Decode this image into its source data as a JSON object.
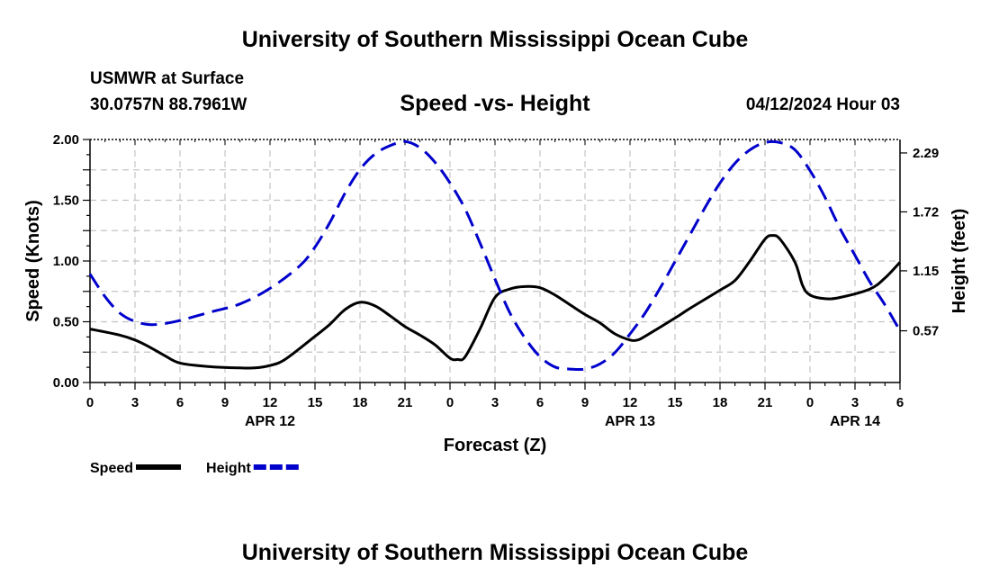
{
  "header": {
    "title": "University of Southern Mississippi Ocean Cube",
    "station": "USMWR at Surface",
    "coords": "30.0757N  88.7961W",
    "datetime": "04/12/2024 Hour 03"
  },
  "footer": {
    "title": "University of Southern Mississippi Ocean Cube"
  },
  "chart_data": {
    "type": "line",
    "title": "Speed -vs- Height",
    "xlabel": "Forecast (Z)",
    "ylabel": "Speed (Knots)",
    "y2label": "Height (feet)",
    "x_unit": "hours since APR 12 00Z",
    "x_range": [
      0,
      54
    ],
    "ylim": [
      0,
      2.0
    ],
    "y2lim": [
      0.07,
      2.42
    ],
    "grid": true,
    "legend_position": "bottom-left",
    "x_ticks": [
      {
        "x": 0,
        "label": "0"
      },
      {
        "x": 3,
        "label": "3"
      },
      {
        "x": 6,
        "label": "6"
      },
      {
        "x": 9,
        "label": "9"
      },
      {
        "x": 12,
        "label": "12"
      },
      {
        "x": 15,
        "label": "15"
      },
      {
        "x": 18,
        "label": "18"
      },
      {
        "x": 21,
        "label": "21"
      },
      {
        "x": 24,
        "label": "0"
      },
      {
        "x": 27,
        "label": "3"
      },
      {
        "x": 30,
        "label": "6"
      },
      {
        "x": 33,
        "label": "9"
      },
      {
        "x": 36,
        "label": "12"
      },
      {
        "x": 39,
        "label": "15"
      },
      {
        "x": 42,
        "label": "18"
      },
      {
        "x": 45,
        "label": "21"
      },
      {
        "x": 48,
        "label": "0"
      },
      {
        "x": 51,
        "label": "3"
      },
      {
        "x": 54,
        "label": "6"
      }
    ],
    "date_labels": [
      {
        "x": 12,
        "label": "APR 12"
      },
      {
        "x": 36,
        "label": "APR 13"
      },
      {
        "x": 51,
        "label": "APR 14"
      }
    ],
    "y_ticks": [
      {
        "y": 0,
        "label": "0.00"
      },
      {
        "y": 0.5,
        "label": "0.50"
      },
      {
        "y": 1.0,
        "label": "1.00"
      },
      {
        "y": 1.5,
        "label": "1.50"
      },
      {
        "y": 2.0,
        "label": "2.00"
      }
    ],
    "y2_ticks": [
      {
        "y": 0.57,
        "label": "0.57"
      },
      {
        "y": 1.15,
        "label": "1.15"
      },
      {
        "y": 1.72,
        "label": "1.72"
      },
      {
        "y": 2.29,
        "label": "2.29"
      }
    ],
    "series": [
      {
        "name": "Speed",
        "axis": "left",
        "color": "#000000",
        "style": "solid",
        "points": [
          [
            0,
            0.44
          ],
          [
            2,
            0.39
          ],
          [
            3,
            0.35
          ],
          [
            4,
            0.29
          ],
          [
            5,
            0.22
          ],
          [
            6,
            0.16
          ],
          [
            8,
            0.13
          ],
          [
            10,
            0.12
          ],
          [
            11,
            0.12
          ],
          [
            12,
            0.14
          ],
          [
            13,
            0.19
          ],
          [
            15,
            0.38
          ],
          [
            16,
            0.48
          ],
          [
            17,
            0.6
          ],
          [
            18,
            0.66
          ],
          [
            19,
            0.63
          ],
          [
            20,
            0.55
          ],
          [
            21,
            0.46
          ],
          [
            22,
            0.39
          ],
          [
            23,
            0.31
          ],
          [
            24,
            0.2
          ],
          [
            24.5,
            0.19
          ],
          [
            25,
            0.21
          ],
          [
            26,
            0.44
          ],
          [
            27,
            0.7
          ],
          [
            28,
            0.77
          ],
          [
            29,
            0.79
          ],
          [
            30,
            0.78
          ],
          [
            31,
            0.72
          ],
          [
            32,
            0.64
          ],
          [
            33,
            0.56
          ],
          [
            34,
            0.49
          ],
          [
            35,
            0.4
          ],
          [
            36,
            0.35
          ],
          [
            36.5,
            0.35
          ],
          [
            37,
            0.38
          ],
          [
            39,
            0.53
          ],
          [
            40,
            0.61
          ],
          [
            42,
            0.76
          ],
          [
            43,
            0.84
          ],
          [
            44,
            1.0
          ],
          [
            45,
            1.18
          ],
          [
            45.5,
            1.21
          ],
          [
            46,
            1.18
          ],
          [
            47,
            0.99
          ],
          [
            47.5,
            0.8
          ],
          [
            48,
            0.72
          ],
          [
            49,
            0.69
          ],
          [
            50,
            0.7
          ],
          [
            52,
            0.77
          ],
          [
            53,
            0.86
          ],
          [
            54,
            0.99
          ]
        ]
      },
      {
        "name": "Height",
        "axis": "right",
        "color": "#0000cc",
        "style": "dashed",
        "points": [
          [
            0,
            1.12
          ],
          [
            1,
            0.9
          ],
          [
            2,
            0.74
          ],
          [
            3,
            0.66
          ],
          [
            4,
            0.63
          ],
          [
            5,
            0.64
          ],
          [
            6,
            0.67
          ],
          [
            8,
            0.75
          ],
          [
            10,
            0.83
          ],
          [
            12,
            0.98
          ],
          [
            14,
            1.2
          ],
          [
            15,
            1.38
          ],
          [
            16,
            1.62
          ],
          [
            17,
            1.9
          ],
          [
            18,
            2.13
          ],
          [
            19,
            2.28
          ],
          [
            20,
            2.36
          ],
          [
            21,
            2.4
          ],
          [
            22,
            2.34
          ],
          [
            23,
            2.2
          ],
          [
            24,
            2.0
          ],
          [
            25,
            1.75
          ],
          [
            26,
            1.42
          ],
          [
            27,
            1.07
          ],
          [
            28,
            0.74
          ],
          [
            29,
            0.5
          ],
          [
            30,
            0.32
          ],
          [
            31,
            0.22
          ],
          [
            32,
            0.2
          ],
          [
            33,
            0.2
          ],
          [
            34,
            0.25
          ],
          [
            35,
            0.36
          ],
          [
            36,
            0.54
          ],
          [
            37,
            0.74
          ],
          [
            38,
            0.98
          ],
          [
            39,
            1.24
          ],
          [
            40,
            1.5
          ],
          [
            41,
            1.76
          ],
          [
            42,
            2.0
          ],
          [
            43,
            2.19
          ],
          [
            44,
            2.32
          ],
          [
            45,
            2.39
          ],
          [
            46,
            2.39
          ],
          [
            47,
            2.32
          ],
          [
            48,
            2.12
          ],
          [
            49,
            1.86
          ],
          [
            50,
            1.56
          ],
          [
            51,
            1.3
          ],
          [
            52,
            1.04
          ],
          [
            53,
            0.82
          ],
          [
            54,
            0.57
          ]
        ]
      }
    ]
  }
}
